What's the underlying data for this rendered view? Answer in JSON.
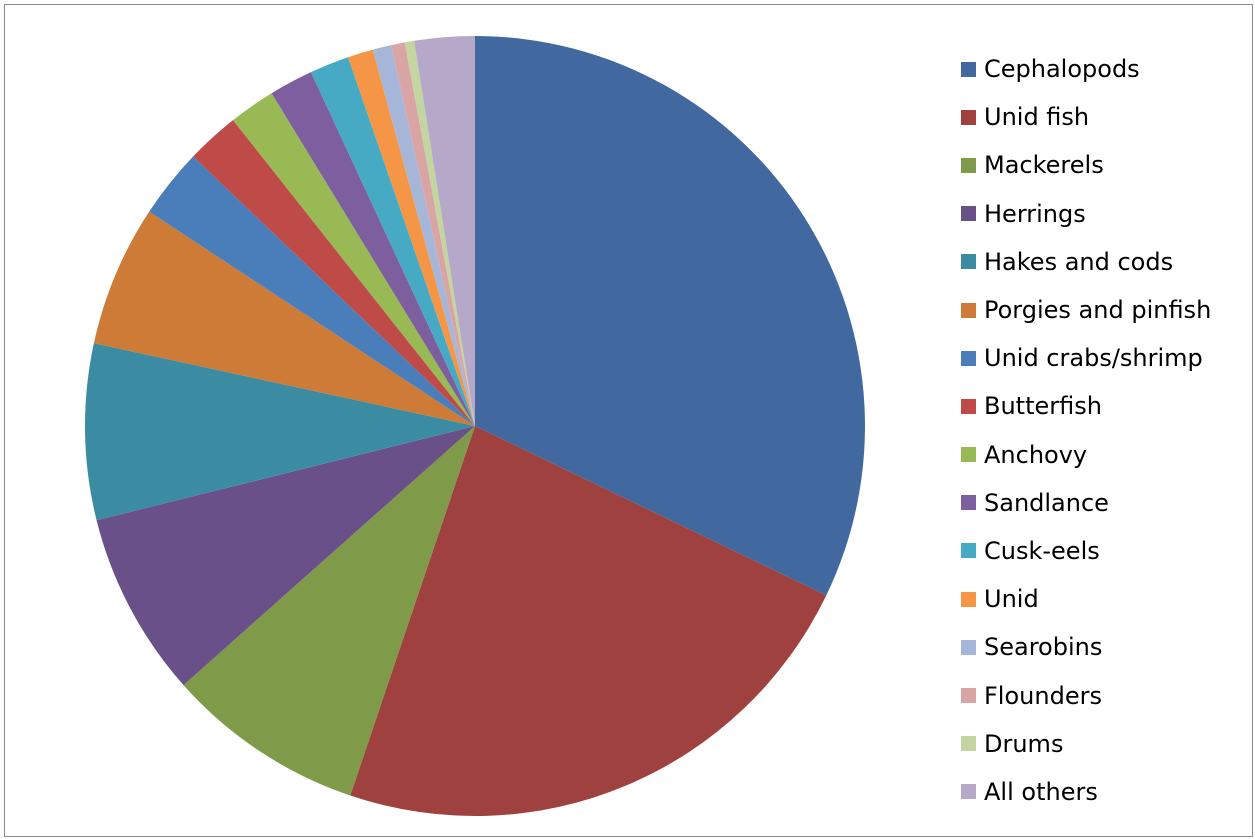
{
  "chart_data": {
    "type": "pie",
    "title": "",
    "start_angle_deg": 0,
    "direction": "clockwise",
    "legend_position": "right",
    "slices": [
      {
        "label": "Cephalopods",
        "value": 33.5,
        "color": "#4169A0"
      },
      {
        "label": "Unid fish",
        "value": 24.0,
        "color": "#9E413F"
      },
      {
        "label": "Mackerels",
        "value": 8.6,
        "color": "#7F9A48"
      },
      {
        "label": "Herrings",
        "value": 8.0,
        "color": "#6A5089"
      },
      {
        "label": "Hakes and cods",
        "value": 7.6,
        "color": "#3B8CA3"
      },
      {
        "label": "Porgies and pinfish",
        "value": 6.1,
        "color": "#CD7B37"
      },
      {
        "label": "Unid crabs/shrimp",
        "value": 3.0,
        "color": "#4A7EBB"
      },
      {
        "label": "Butterfish",
        "value": 2.3,
        "color": "#BE4B48"
      },
      {
        "label": "Anchovy",
        "value": 2.0,
        "color": "#98B954"
      },
      {
        "label": "Sandlance",
        "value": 1.9,
        "color": "#7D5FA0"
      },
      {
        "label": "Cusk-eels",
        "value": 1.7,
        "color": "#46AAC4"
      },
      {
        "label": "Unid",
        "value": 1.1,
        "color": "#F59647"
      },
      {
        "label": "Searobins",
        "value": 0.8,
        "color": "#A5B6D8"
      },
      {
        "label": "Flounders",
        "value": 0.6,
        "color": "#D9A5A4"
      },
      {
        "label": "Drums",
        "value": 0.4,
        "color": "#C3D6A0"
      },
      {
        "label": "All others",
        "value": 2.6,
        "color": "#B5A8C8"
      }
    ]
  }
}
